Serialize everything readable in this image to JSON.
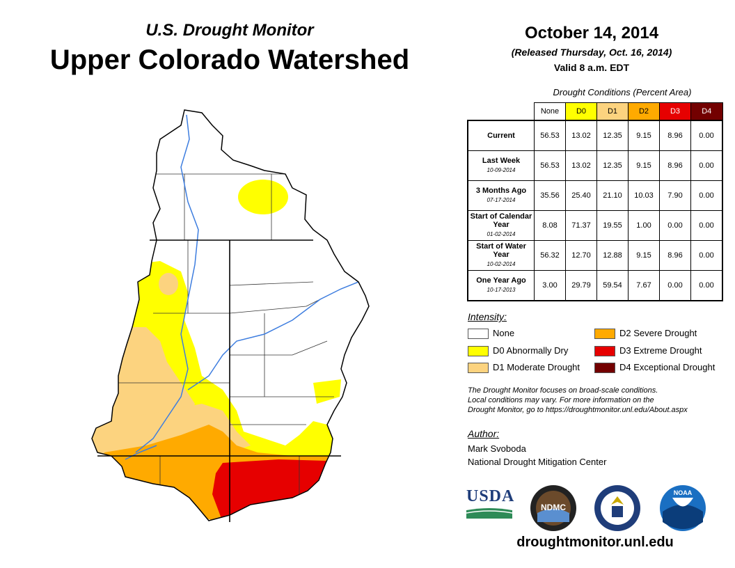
{
  "header": {
    "supertitle": "U.S. Drought Monitor",
    "title": "Upper Colorado Watershed",
    "date": "October 14, 2014",
    "released": "(Released Thursday, Oct. 16, 2014)",
    "valid": "Valid 8 a.m. EDT"
  },
  "table": {
    "caption": "Drought Conditions (Percent Area)",
    "columns": [
      "None",
      "D0",
      "D1",
      "D2",
      "D3",
      "D4"
    ],
    "rows": [
      {
        "label": "Current",
        "date": "",
        "values": [
          "56.53",
          "13.02",
          "12.35",
          "9.15",
          "8.96",
          "0.00"
        ]
      },
      {
        "label": "Last Week",
        "date": "10-09-2014",
        "values": [
          "56.53",
          "13.02",
          "12.35",
          "9.15",
          "8.96",
          "0.00"
        ]
      },
      {
        "label": "3 Months Ago",
        "date": "07-17-2014",
        "values": [
          "35.56",
          "25.40",
          "21.10",
          "10.03",
          "7.90",
          "0.00"
        ]
      },
      {
        "label": "Start of Calendar Year",
        "date": "01-02-2014",
        "values": [
          "8.08",
          "71.37",
          "19.55",
          "1.00",
          "0.00",
          "0.00"
        ]
      },
      {
        "label": "Start of Water Year",
        "date": "10-02-2014",
        "values": [
          "56.32",
          "12.70",
          "12.88",
          "9.15",
          "8.96",
          "0.00"
        ]
      },
      {
        "label": "One Year Ago",
        "date": "10-17-2013",
        "values": [
          "3.00",
          "29.79",
          "59.54",
          "7.67",
          "0.00",
          "0.00"
        ]
      }
    ]
  },
  "legend": {
    "title": "Intensity:",
    "items": [
      {
        "label": "None",
        "color": "#ffffff"
      },
      {
        "label": "D0 Abnormally Dry",
        "color": "#ffff00"
      },
      {
        "label": "D1 Moderate Drought",
        "color": "#fcd37f"
      },
      {
        "label": "D2 Severe Drought",
        "color": "#ffaa00"
      },
      {
        "label": "D3 Extreme Drought",
        "color": "#e60000"
      },
      {
        "label": "D4 Exceptional Drought",
        "color": "#730000"
      }
    ]
  },
  "note": {
    "line1": "The Drought Monitor focuses on broad-scale conditions.",
    "line2": "Local conditions may vary. For more information on the",
    "line3": "Drought Monitor, go to https://droughtmonitor.unl.edu/About.aspx"
  },
  "author": {
    "title": "Author:",
    "name": "Mark Svoboda",
    "org": "National Drought Mitigation Center"
  },
  "logos": {
    "usda": "USDA",
    "ndmc": "NDMC",
    "noaa": "NOAA"
  },
  "website": "droughtmonitor.unl.edu",
  "colors": {
    "none": "#ffffff",
    "d0": "#ffff00",
    "d1": "#fcd37f",
    "d2": "#ffaa00",
    "d3": "#e60000",
    "d4": "#730000",
    "river": "#3d7ddf"
  }
}
